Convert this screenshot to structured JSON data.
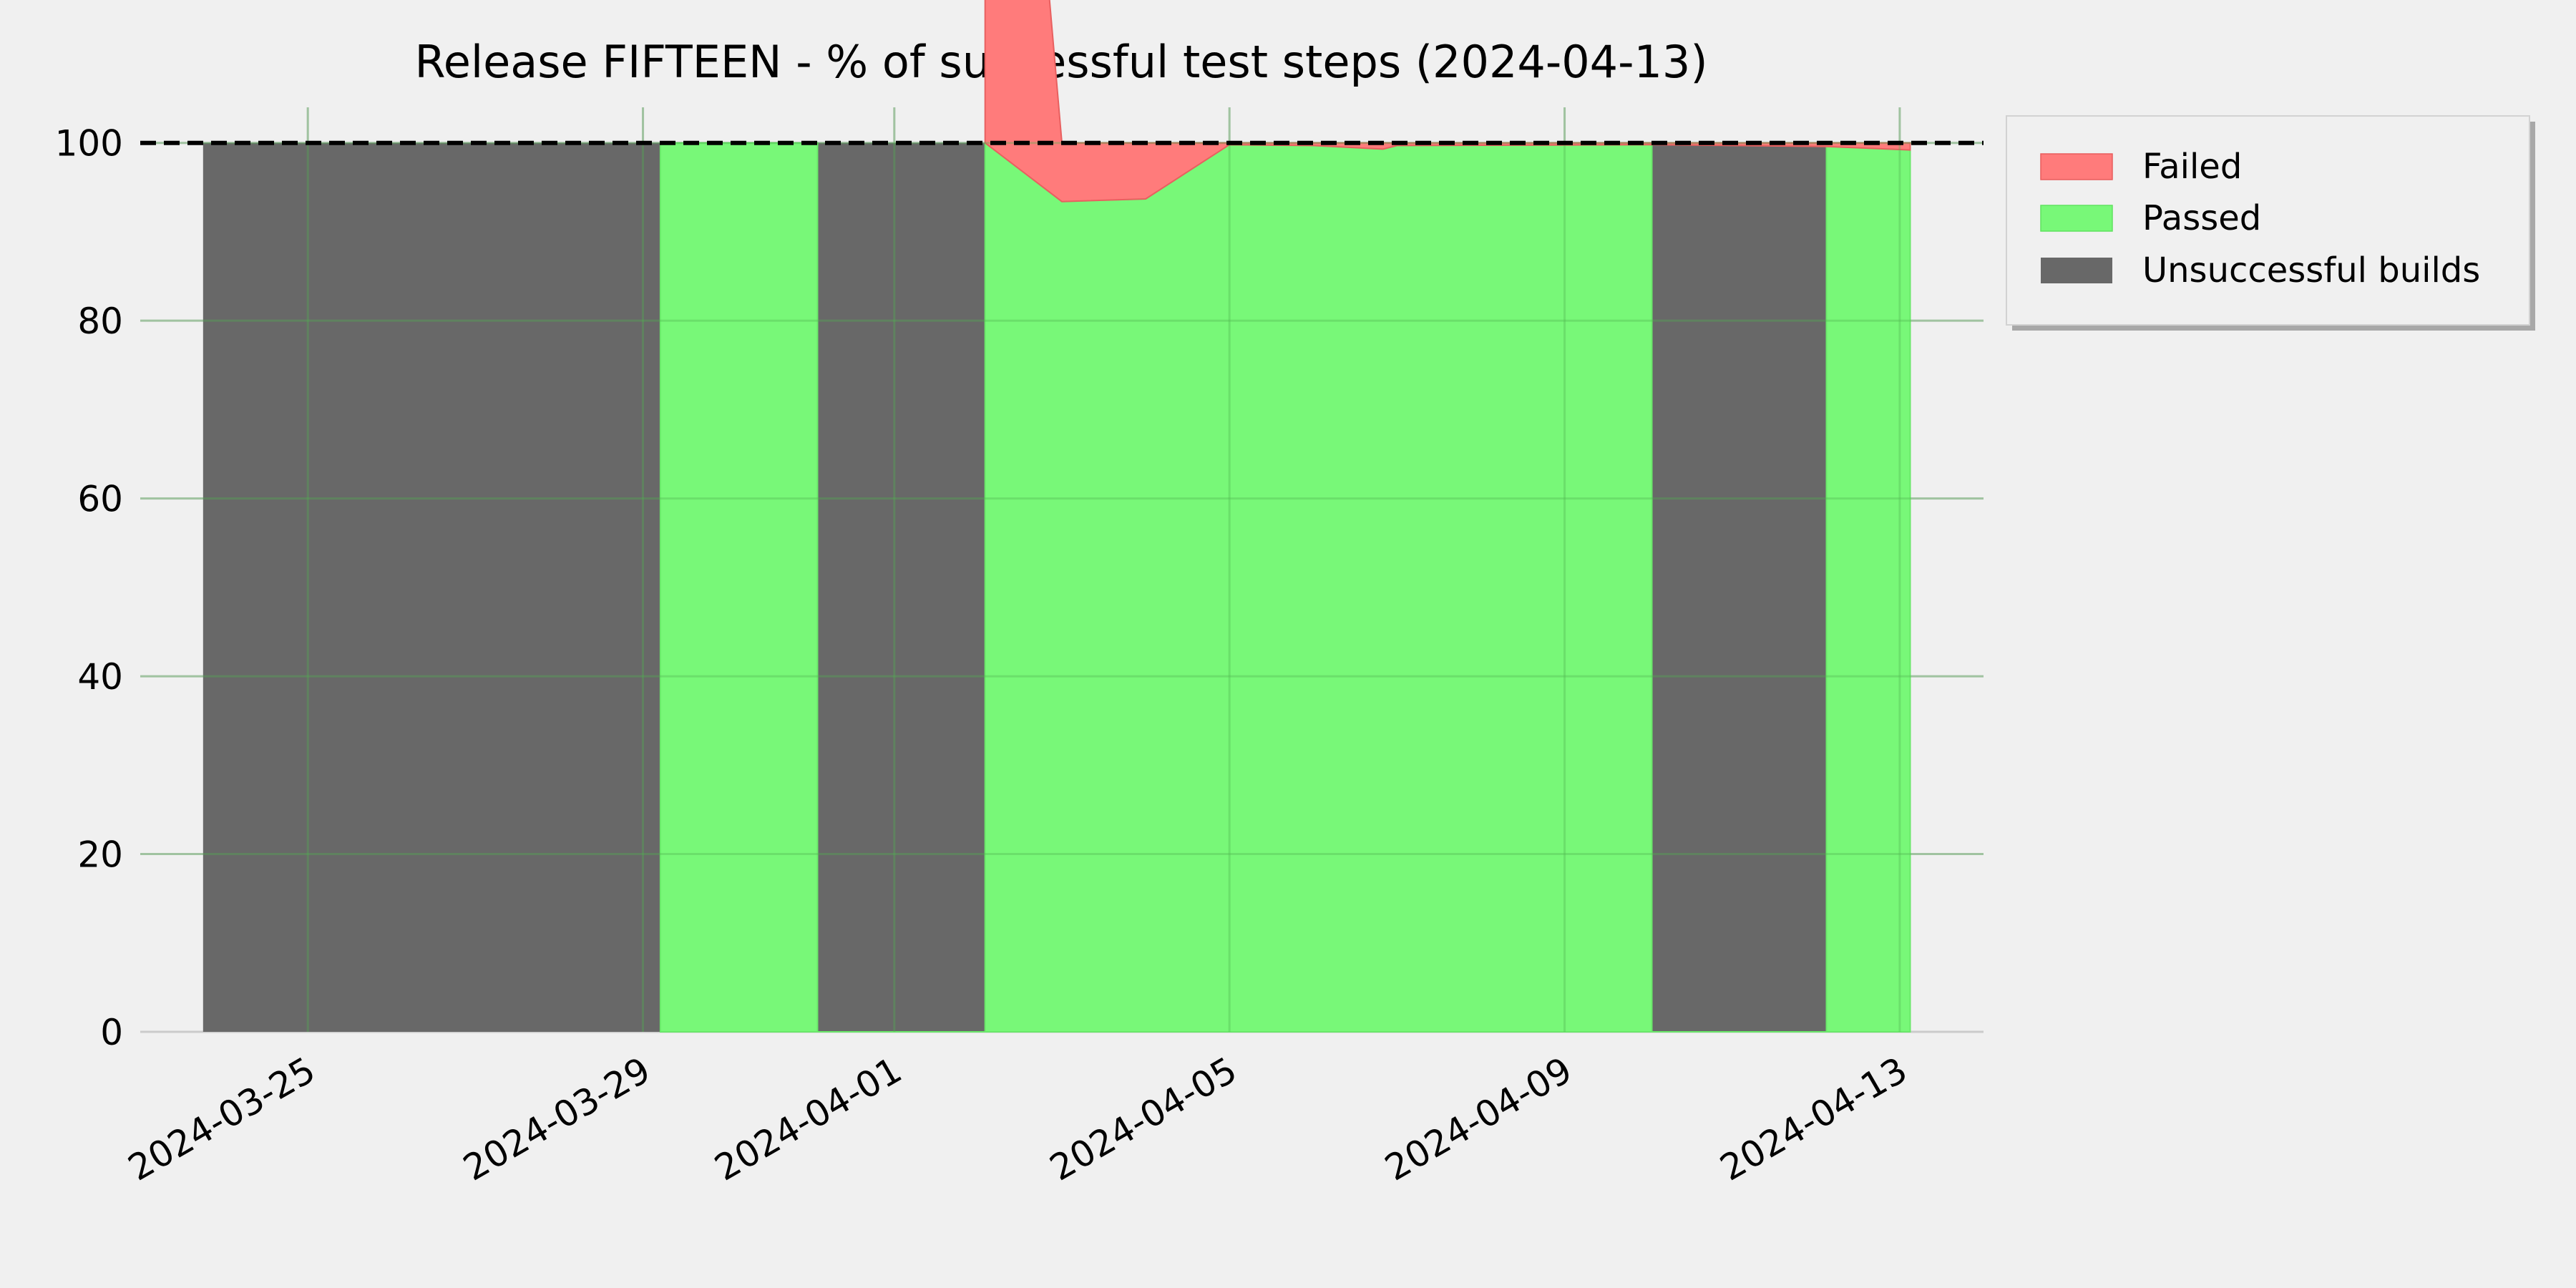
{
  "chart_data": {
    "type": "area",
    "title": "Release FIFTEEN - % of successful test steps (2024-04-13)",
    "xlabel": "",
    "ylabel": "",
    "xlim": [
      "2024-03-23T00:00",
      "2024-04-14T00:00"
    ],
    "ylim": [
      0,
      104
    ],
    "x_ticks": [
      "2024-03-25",
      "2024-03-29",
      "2024-04-01",
      "2024-04-05",
      "2024-04-09",
      "2024-04-13"
    ],
    "y_ticks": [
      0,
      20,
      40,
      60,
      80,
      100
    ],
    "grid": true,
    "reference_line": 100,
    "legend": {
      "placement": "outside top-right",
      "entries": [
        "Failed",
        "Passed",
        "Unsuccessful builds"
      ]
    },
    "colors": {
      "Failed": "#ff7b7b",
      "Passed": "#78f878",
      "Unsuccessful builds": "#686868",
      "background": "#f0f0f0",
      "grid": "#cbcbcb"
    },
    "series": [
      {
        "name": "Passed",
        "points": [
          [
            "2024-03-29T05:00",
            0
          ],
          [
            "2024-03-29T05:00",
            100
          ],
          [
            "2024-03-31T02:00",
            100
          ],
          [
            "2024-03-31T02:00",
            0
          ],
          [
            "2024-04-02T02:00",
            0
          ],
          [
            "2024-04-02T02:00",
            100
          ],
          [
            "2024-04-03T00:00",
            93.4
          ],
          [
            "2024-04-04T00:00",
            93.7
          ],
          [
            "2024-04-05T00:00",
            99.8
          ],
          [
            "2024-04-06T00:00",
            99.7
          ],
          [
            "2024-04-06T20:00",
            99.3
          ],
          [
            "2024-04-07T00:00",
            99.7
          ],
          [
            "2024-04-10T01:00",
            99.8
          ],
          [
            "2024-04-10T01:00",
            0
          ],
          [
            "2024-04-12T03:00",
            0
          ],
          [
            "2024-04-12T03:00",
            99.6
          ],
          [
            "2024-04-13T03:00",
            99.2
          ],
          [
            "2024-04-13T03:00",
            0
          ]
        ]
      },
      {
        "name": "Failed",
        "points": [
          [
            "2024-04-02T02:00",
            100
          ],
          [
            "2024-04-03T00:00",
            6.6
          ],
          [
            "2024-04-04T00:00",
            6.3
          ],
          [
            "2024-04-05T00:00",
            0.2
          ],
          [
            "2024-04-06T00:00",
            0.3
          ],
          [
            "2024-04-06T20:00",
            0.7
          ],
          [
            "2024-04-07T00:00",
            0.3
          ],
          [
            "2024-04-10T01:00",
            0.2
          ],
          [
            "2024-04-12T03:00",
            0.4
          ],
          [
            "2024-04-13T03:00",
            0.8
          ]
        ]
      },
      {
        "name": "Unsuccessful builds",
        "intervals": [
          [
            "2024-03-23T18:00",
            "2024-03-29T05:00"
          ],
          [
            "2024-03-31T02:00",
            "2024-04-02T02:00"
          ],
          [
            "2024-04-10T01:00",
            "2024-04-12T03:00"
          ]
        ],
        "value": 100
      }
    ]
  }
}
